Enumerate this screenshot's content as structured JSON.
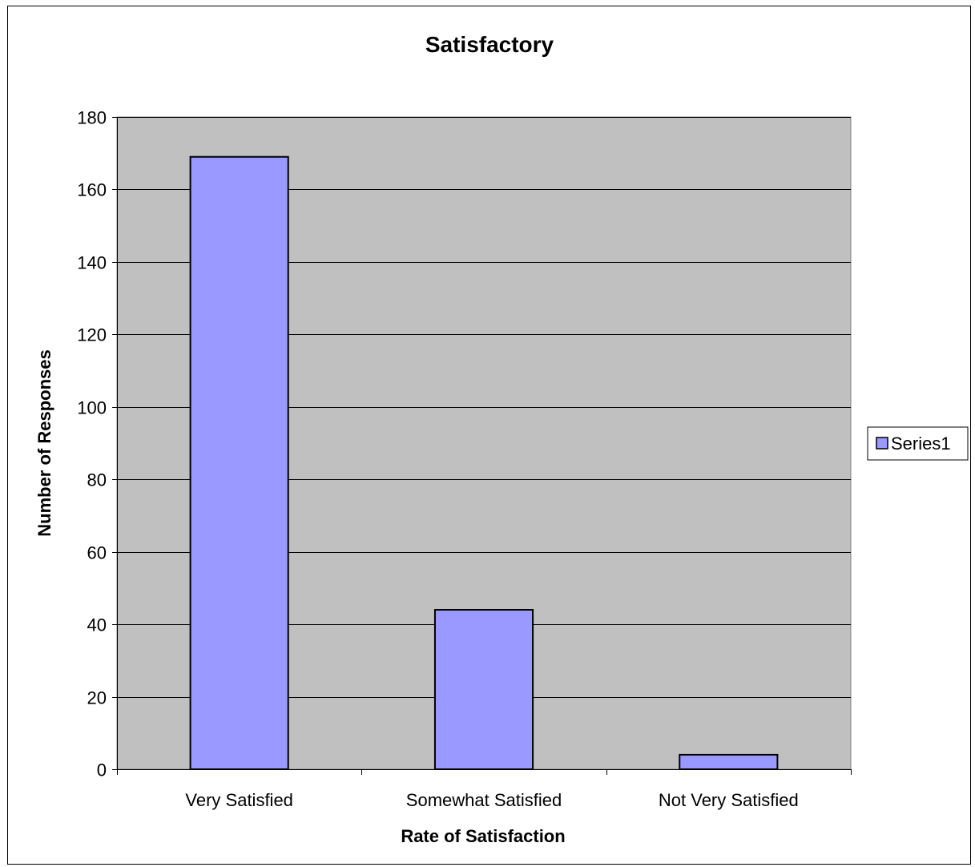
{
  "chart_data": {
    "type": "bar",
    "title": "Satisfactory",
    "xlabel": "Rate of Satisfaction",
    "ylabel": "Number of Responses",
    "categories": [
      "Very Satisfied",
      "Somewhat Satisfied",
      "Not Very Satisfied"
    ],
    "series": [
      {
        "name": "Series1",
        "values": [
          169,
          44,
          4
        ]
      }
    ],
    "ylim": [
      0,
      180
    ],
    "yticks": [
      0,
      20,
      40,
      60,
      80,
      100,
      120,
      140,
      160,
      180
    ],
    "grid": true,
    "legend_position": "right",
    "colors": {
      "plot_background": "#c0c0c0",
      "bar_fill": "#9999ff",
      "bar_stroke": "#000000",
      "gridline": "#000000"
    }
  }
}
